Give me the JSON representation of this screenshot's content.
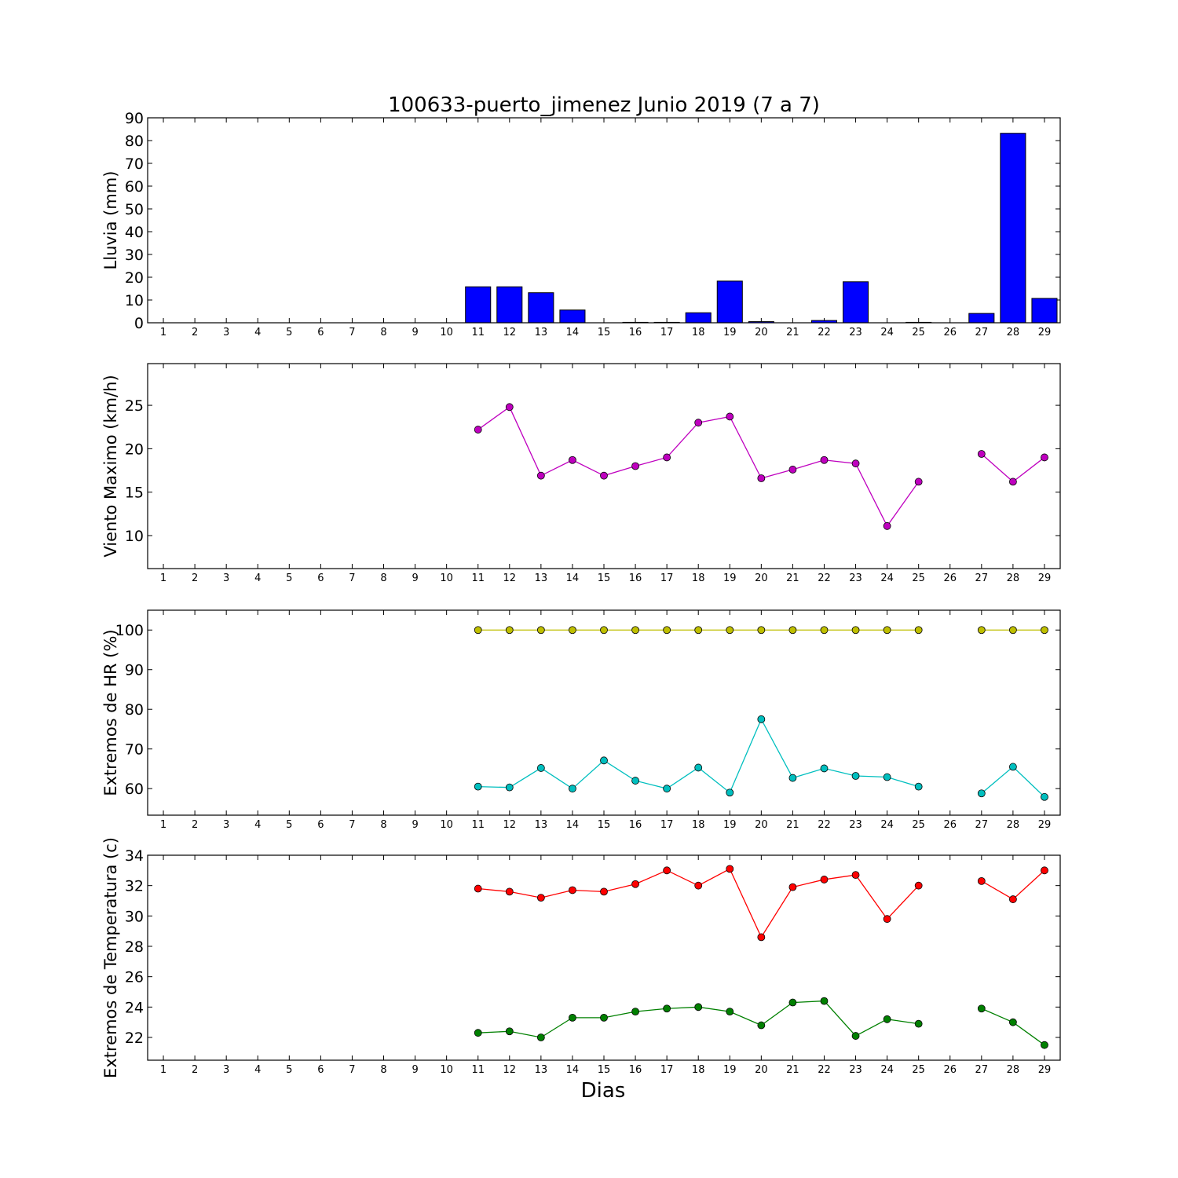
{
  "title": "100633-puerto_jimenez Junio 2019  (7 a 7)",
  "xlabel": "Dias",
  "colors": {
    "rain": "#0000ff",
    "wind": "#bf00bf",
    "hr_max": "#bfbf00",
    "hr_min": "#00bfbf",
    "temp_max": "#ff0000",
    "temp_min": "#008000"
  },
  "chart_data": [
    {
      "type": "bar",
      "ylabel": "Lluvia (mm)",
      "ylim": [
        0,
        90
      ],
      "yticks": [
        0,
        10,
        20,
        30,
        40,
        50,
        60,
        70,
        80,
        90
      ],
      "x": [
        1,
        2,
        3,
        4,
        5,
        6,
        7,
        8,
        9,
        10,
        11,
        12,
        13,
        14,
        15,
        16,
        17,
        18,
        19,
        20,
        21,
        22,
        23,
        24,
        25,
        26,
        27,
        28,
        29
      ],
      "series": [
        {
          "color_key": "rain",
          "values": [
            0,
            0,
            0,
            0,
            0,
            0,
            0,
            0,
            0,
            0,
            15.8,
            15.8,
            13.2,
            5.6,
            0,
            0.2,
            0.2,
            4.4,
            18.3,
            0.5,
            0,
            1.0,
            18.0,
            0,
            0.2,
            0,
            4.1,
            83.2,
            10.7
          ]
        }
      ]
    },
    {
      "type": "line",
      "ylabel": "Viento Maximo (km/h)",
      "ylim": [
        6.2,
        29.8
      ],
      "yticks": [
        10,
        15,
        20,
        25
      ],
      "x": [
        1,
        2,
        3,
        4,
        5,
        6,
        7,
        8,
        9,
        10,
        11,
        12,
        13,
        14,
        15,
        16,
        17,
        18,
        19,
        20,
        21,
        22,
        23,
        24,
        25,
        26,
        27,
        28,
        29
      ],
      "series": [
        {
          "color_key": "wind",
          "values": [
            null,
            null,
            null,
            null,
            null,
            null,
            null,
            null,
            null,
            null,
            22.2,
            24.8,
            16.9,
            18.7,
            16.9,
            18.0,
            19.0,
            23.0,
            23.7,
            16.6,
            17.6,
            18.7,
            18.3,
            11.1,
            16.2,
            null,
            19.4,
            16.2,
            19.0
          ]
        }
      ]
    },
    {
      "type": "line",
      "ylabel": "Extremos de HR (%)",
      "ylim": [
        53.3,
        105
      ],
      "yticks": [
        60,
        70,
        80,
        90,
        100
      ],
      "x": [
        1,
        2,
        3,
        4,
        5,
        6,
        7,
        8,
        9,
        10,
        11,
        12,
        13,
        14,
        15,
        16,
        17,
        18,
        19,
        20,
        21,
        22,
        23,
        24,
        25,
        26,
        27,
        28,
        29
      ],
      "series": [
        {
          "color_key": "hr_max",
          "values": [
            null,
            null,
            null,
            null,
            null,
            null,
            null,
            null,
            null,
            null,
            100,
            100,
            100,
            100,
            100,
            100,
            100,
            100,
            100,
            100,
            100,
            100,
            100,
            100,
            100,
            null,
            100,
            100,
            100
          ]
        },
        {
          "color_key": "hr_min",
          "values": [
            null,
            null,
            null,
            null,
            null,
            null,
            null,
            null,
            null,
            null,
            60.5,
            60.3,
            65.2,
            60.0,
            67.1,
            62.0,
            60.0,
            65.3,
            59.0,
            77.5,
            62.7,
            65.1,
            63.2,
            62.9,
            60.5,
            null,
            58.8,
            65.5,
            57.9
          ]
        }
      ]
    },
    {
      "type": "line",
      "ylabel": "Extremos de Temperatura (c)",
      "ylim": [
        20.5,
        34
      ],
      "yticks": [
        22,
        24,
        26,
        28,
        30,
        32,
        34
      ],
      "x": [
        1,
        2,
        3,
        4,
        5,
        6,
        7,
        8,
        9,
        10,
        11,
        12,
        13,
        14,
        15,
        16,
        17,
        18,
        19,
        20,
        21,
        22,
        23,
        24,
        25,
        26,
        27,
        28,
        29
      ],
      "series": [
        {
          "color_key": "temp_max",
          "values": [
            null,
            null,
            null,
            null,
            null,
            null,
            null,
            null,
            null,
            null,
            31.8,
            31.6,
            31.2,
            31.7,
            31.6,
            32.1,
            33.0,
            32.0,
            33.1,
            28.6,
            31.9,
            32.4,
            32.7,
            29.8,
            32.0,
            null,
            32.3,
            31.1,
            33.0
          ]
        },
        {
          "color_key": "temp_min",
          "values": [
            null,
            null,
            null,
            null,
            null,
            null,
            null,
            null,
            null,
            null,
            22.3,
            22.4,
            22.0,
            23.3,
            23.3,
            23.7,
            23.9,
            24.0,
            23.7,
            22.8,
            24.3,
            24.4,
            22.1,
            23.2,
            22.9,
            null,
            23.9,
            23.0,
            21.5
          ]
        }
      ]
    }
  ]
}
